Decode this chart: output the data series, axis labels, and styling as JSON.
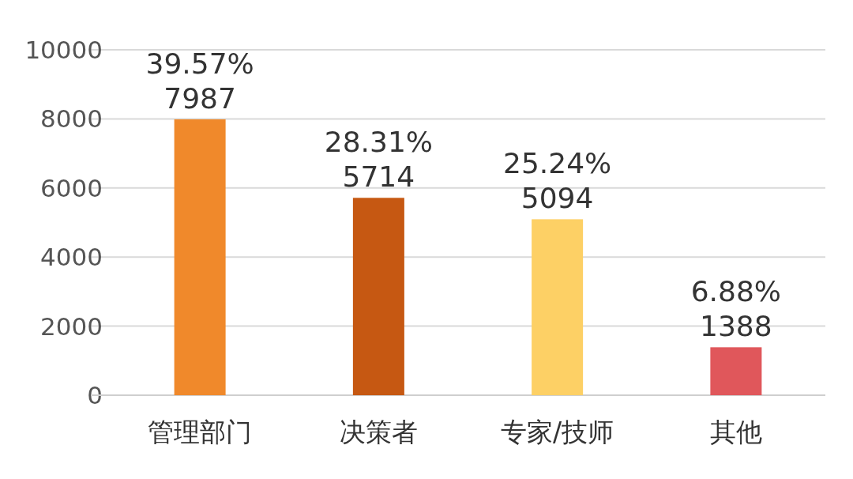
{
  "chart_data": {
    "type": "bar",
    "categories": [
      "管理部门",
      "决策者",
      "专家/技师",
      "其他"
    ],
    "values": [
      7987,
      5714,
      5094,
      1388
    ],
    "colors": [
      "#f0892b",
      "#c65812",
      "#fdd065",
      "#e0575b"
    ],
    "value_labels": [
      "39.57%\n7987",
      "28.31%\n5714",
      "25.24%\n5094",
      "6.88%\n1388"
    ],
    "ylim": [
      0,
      10000
    ],
    "yticks": [
      0,
      2000,
      4000,
      6000,
      8000,
      10000
    ],
    "grid": "y"
  }
}
